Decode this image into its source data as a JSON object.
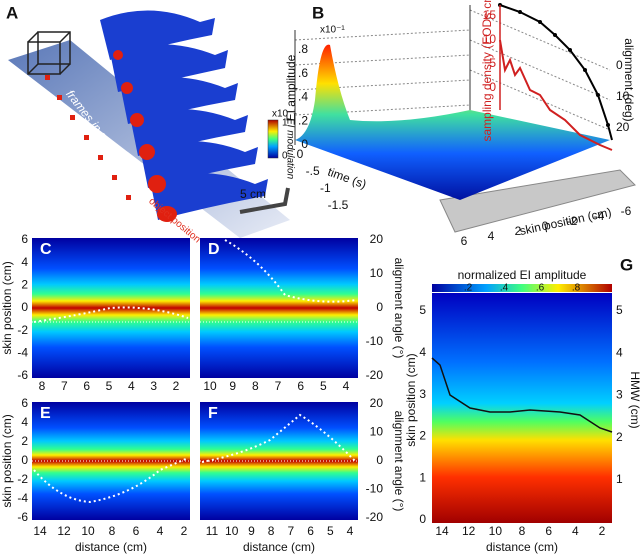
{
  "panels": {
    "A": {
      "label": "A",
      "frames": "frames in sequence",
      "object": "object position",
      "scale": "5 cm",
      "cbar_exp": "x10⁻¹",
      "cbar_top": "1",
      "cbar_bottom": "0",
      "cbar_label": "EI modulation"
    },
    "B": {
      "label": "B",
      "exp": "x10⁻¹",
      "ei_label": "EI amplitude",
      "ei_ticks": [
        ".8",
        ".6",
        ".4",
        ".2",
        "0"
      ],
      "density_label": "sampling density (EODs·cm⁻¹)",
      "density_ticks": [
        15,
        10,
        5,
        0
      ],
      "align_label": "alignment (deg)",
      "align_ticks": [
        0,
        10,
        20
      ],
      "time_label": "time (s)",
      "time_ticks": [
        0,
        "-.5",
        "-1",
        "-1.5"
      ],
      "skin_label": "skin position (cm)",
      "skin_ticks": [
        6,
        4,
        2,
        0,
        -2,
        -4,
        -6
      ]
    },
    "C": {
      "label": "C",
      "yticks": [
        6,
        4,
        2,
        0,
        -2,
        -4,
        -6
      ],
      "xticks": [
        8,
        7,
        6,
        5,
        4,
        3,
        2
      ],
      "ylabel": "skin position (cm)"
    },
    "D": {
      "label": "D",
      "xticks": [
        10,
        9,
        8,
        7,
        6,
        5,
        4
      ],
      "y2ticks": [
        20,
        10,
        0,
        -10,
        -20
      ],
      "y2label": "alignment angle (°)"
    },
    "E": {
      "label": "E",
      "yticks": [
        6,
        4,
        2,
        0,
        -2,
        -4,
        -6
      ],
      "xticks": [
        14,
        12,
        10,
        8,
        6,
        4,
        2
      ],
      "xlabel": "distance (cm)",
      "ylabel": "skin position (cm)"
    },
    "F": {
      "label": "F",
      "xticks": [
        11,
        10,
        9,
        8,
        7,
        6,
        5,
        4
      ],
      "xlabel": "distance (cm)",
      "y2ticks": [
        20,
        10,
        0,
        -10,
        -20
      ],
      "y2label": "alignment angle (°)"
    },
    "G": {
      "label": "G",
      "cbar_label": "normalized EI amplitude",
      "cbar_ticks": [
        ".2",
        ".4",
        ".6",
        ".8"
      ],
      "yticks": [
        5,
        4,
        3,
        2,
        1,
        0
      ],
      "ylabel": "skin position (cm)",
      "y2ticks": [
        5,
        4,
        3,
        2,
        1
      ],
      "y2label": "HMW (cm)",
      "xticks": [
        14,
        12,
        10,
        8,
        6,
        4,
        2
      ],
      "xlabel": "distance (cm)"
    }
  }
}
